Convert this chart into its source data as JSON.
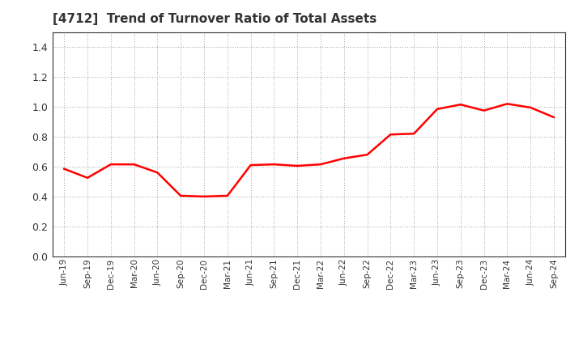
{
  "title": "[4712]  Trend of Turnover Ratio of Total Assets",
  "title_fontsize": 11,
  "title_color": "#333333",
  "line_color": "#FF0000",
  "line_width": 1.8,
  "background_color": "#FFFFFF",
  "grid_color": "#888888",
  "ylim": [
    0.0,
    1.5
  ],
  "yticks": [
    0.0,
    0.2,
    0.4,
    0.6,
    0.8,
    1.0,
    1.2,
    1.4
  ],
  "x_labels": [
    "Jun-19",
    "Sep-19",
    "Dec-19",
    "Mar-20",
    "Jun-20",
    "Sep-20",
    "Dec-20",
    "Mar-21",
    "Jun-21",
    "Sep-21",
    "Dec-21",
    "Mar-22",
    "Jun-22",
    "Sep-22",
    "Dec-22",
    "Mar-23",
    "Jun-23",
    "Sep-23",
    "Dec-23",
    "Mar-24",
    "Jun-24",
    "Sep-24"
  ],
  "values": [
    0.585,
    0.525,
    0.615,
    0.615,
    0.56,
    0.405,
    0.4,
    0.405,
    0.61,
    0.615,
    0.605,
    0.615,
    0.655,
    0.68,
    0.815,
    0.82,
    0.985,
    1.015,
    0.975,
    1.02,
    0.995,
    0.93
  ]
}
